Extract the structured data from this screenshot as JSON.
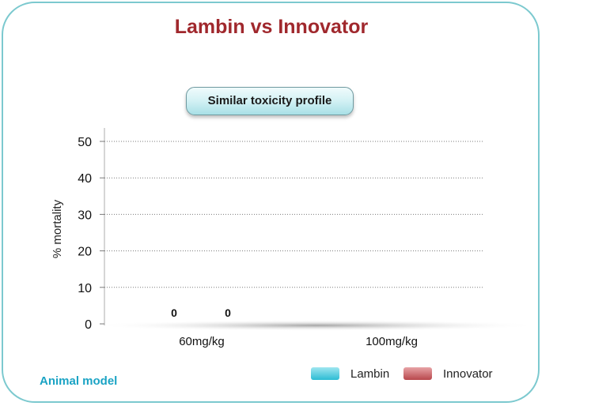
{
  "chart_data": {
    "type": "bar",
    "title": "Lambin vs Innovator",
    "subtitle": "Similar toxicity profile",
    "ylabel": "% mortality",
    "xlabel": "",
    "categories": [
      "60mg/kg",
      "100mg/kg"
    ],
    "series": [
      {
        "name": "Lambin",
        "values": [
          0,
          null
        ],
        "color": "#2cbcd4"
      },
      {
        "name": "Innovator",
        "values": [
          0,
          null
        ],
        "color": "#b8474c"
      }
    ],
    "data_labels": [
      {
        "category": "60mg/kg",
        "series": "Lambin",
        "text": "0"
      },
      {
        "category": "60mg/kg",
        "series": "Innovator",
        "text": "0"
      }
    ],
    "ylim": [
      0,
      50
    ],
    "yticks": [
      0,
      10,
      20,
      30,
      40,
      50
    ],
    "grid": true,
    "legend_position": "bottom-right",
    "footnote": "Animal model"
  }
}
